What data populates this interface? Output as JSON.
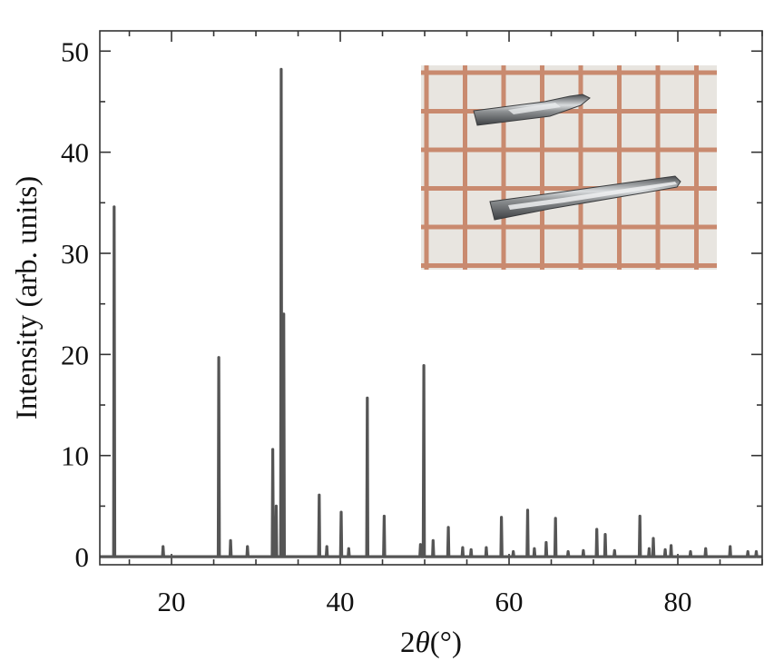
{
  "chart_data": {
    "type": "line",
    "title": "",
    "xlabel": "2θ (°)",
    "xlabel_parts": {
      "prefix": "2",
      "symbol": "θ",
      "unit": "(°)"
    },
    "ylabel": "Intensity (arb. units)",
    "xlim": [
      11.5,
      90
    ],
    "ylim": [
      -0.8,
      52
    ],
    "x_ticks": [
      20,
      40,
      60,
      80
    ],
    "y_ticks": [
      0,
      10,
      20,
      30,
      40,
      50
    ],
    "x_minor_step": 5,
    "y_minor_step": 5,
    "grid": false,
    "legend": "none",
    "line_color": "#555555",
    "series": [
      {
        "peaks": [
          {
            "x": 13.2,
            "y": 34.6
          },
          {
            "x": 19.0,
            "y": 1.0
          },
          {
            "x": 25.6,
            "y": 19.7
          },
          {
            "x": 27.0,
            "y": 1.6
          },
          {
            "x": 29.0,
            "y": 1.0
          },
          {
            "x": 32.0,
            "y": 10.6
          },
          {
            "x": 32.4,
            "y": 5.0
          },
          {
            "x": 33.0,
            "y": 48.2
          },
          {
            "x": 33.3,
            "y": 24.0
          },
          {
            "x": 37.5,
            "y": 6.1
          },
          {
            "x": 38.4,
            "y": 1.0
          },
          {
            "x": 40.1,
            "y": 4.4
          },
          {
            "x": 41.0,
            "y": 0.8
          },
          {
            "x": 43.2,
            "y": 15.7
          },
          {
            "x": 45.2,
            "y": 4.0
          },
          {
            "x": 49.5,
            "y": 1.2
          },
          {
            "x": 49.9,
            "y": 18.9
          },
          {
            "x": 51.0,
            "y": 1.6
          },
          {
            "x": 52.8,
            "y": 2.9
          },
          {
            "x": 54.5,
            "y": 0.9
          },
          {
            "x": 55.5,
            "y": 0.7
          },
          {
            "x": 57.3,
            "y": 0.9
          },
          {
            "x": 59.1,
            "y": 3.9
          },
          {
            "x": 60.5,
            "y": 0.5
          },
          {
            "x": 62.2,
            "y": 4.6
          },
          {
            "x": 63.0,
            "y": 0.8
          },
          {
            "x": 64.4,
            "y": 1.4
          },
          {
            "x": 65.5,
            "y": 3.8
          },
          {
            "x": 67.0,
            "y": 0.5
          },
          {
            "x": 68.8,
            "y": 0.6
          },
          {
            "x": 70.4,
            "y": 2.7
          },
          {
            "x": 71.4,
            "y": 2.2
          },
          {
            "x": 72.5,
            "y": 0.6
          },
          {
            "x": 75.5,
            "y": 4.0
          },
          {
            "x": 76.6,
            "y": 0.8
          },
          {
            "x": 77.1,
            "y": 1.8
          },
          {
            "x": 78.5,
            "y": 0.7
          },
          {
            "x": 79.2,
            "y": 1.1
          },
          {
            "x": 81.5,
            "y": 0.5
          },
          {
            "x": 83.3,
            "y": 0.8
          },
          {
            "x": 86.2,
            "y": 1.0
          },
          {
            "x": 88.3,
            "y": 0.5
          },
          {
            "x": 89.3,
            "y": 0.5
          }
        ]
      }
    ]
  },
  "inset": {
    "content": "photograph of two silver metallic needle-like crystals on a millimetre grid paper",
    "background_color": "#e8e5e0",
    "grid_line_color": "#c98a6f",
    "crystal_color": "#8e9193"
  }
}
